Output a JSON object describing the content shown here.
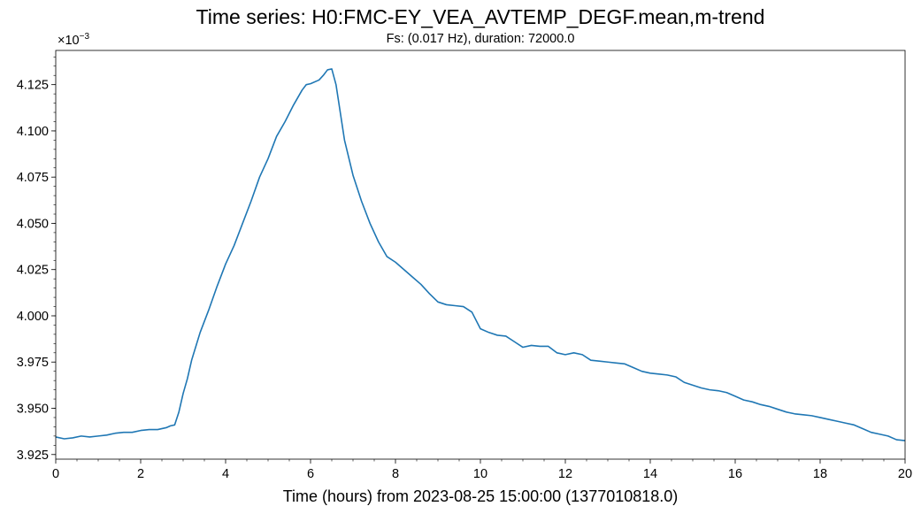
{
  "chart_data": {
    "type": "line",
    "title": "Time series: H0:FMC-EY_VEA_AVTEMP_DEGF.mean,m-trend",
    "subtitle": "Fs: (0.017 Hz), duration: 72000.0",
    "xlabel": "Time (hours) from 2023-08-25 15:00:00 (1377010818.0)",
    "ylabel": "",
    "y_multiplier_base": "×10",
    "y_multiplier_exp": "−3",
    "xlim": [
      0,
      20
    ],
    "ylim": [
      3.9225,
      4.1435
    ],
    "x_ticks": [
      0,
      2,
      4,
      6,
      8,
      10,
      12,
      14,
      16,
      18,
      20
    ],
    "x_tick_labels": [
      "0",
      "2",
      "4",
      "6",
      "8",
      "10",
      "12",
      "14",
      "16",
      "18",
      "20"
    ],
    "y_ticks": [
      3.925,
      3.95,
      3.975,
      4.0,
      4.025,
      4.05,
      4.075,
      4.1,
      4.125
    ],
    "y_tick_labels": [
      "3.925",
      "3.950",
      "3.975",
      "4.000",
      "4.025",
      "4.050",
      "4.075",
      "4.100",
      "4.125"
    ],
    "grid": false,
    "line_color": "#1f77b4",
    "series": [
      {
        "x": [
          0,
          0.2,
          0.4,
          0.6,
          0.8,
          1.0,
          1.2,
          1.4,
          1.6,
          1.8,
          2.0,
          2.2,
          2.4,
          2.6,
          2.7,
          2.8,
          2.9,
          3.0,
          3.1,
          3.2,
          3.4,
          3.6,
          3.8,
          4.0,
          4.2,
          4.4,
          4.6,
          4.8,
          5.0,
          5.2,
          5.4,
          5.6,
          5.8,
          5.9,
          6.0,
          6.2,
          6.3,
          6.4,
          6.5,
          6.6,
          6.7,
          6.8,
          7.0,
          7.2,
          7.4,
          7.6,
          7.8,
          8.0,
          8.2,
          8.4,
          8.6,
          8.8,
          9.0,
          9.2,
          9.4,
          9.6,
          9.8,
          10.0,
          10.2,
          10.4,
          10.6,
          10.8,
          11.0,
          11.2,
          11.4,
          11.6,
          11.8,
          12.0,
          12.2,
          12.4,
          12.6,
          12.8,
          13.0,
          13.2,
          13.4,
          13.6,
          13.8,
          14.0,
          14.2,
          14.4,
          14.6,
          14.8,
          15.0,
          15.2,
          15.4,
          15.6,
          15.8,
          16.0,
          16.2,
          16.4,
          16.6,
          16.8,
          17.0,
          17.2,
          17.4,
          17.6,
          17.8,
          18.0,
          18.2,
          18.4,
          18.6,
          18.8,
          19.0,
          19.2,
          19.4,
          19.6,
          19.8,
          20.0
        ],
        "y": [
          3.9345,
          3.9335,
          3.934,
          3.935,
          3.9345,
          3.935,
          3.9355,
          3.9365,
          3.937,
          3.937,
          3.938,
          3.9385,
          3.9385,
          3.9395,
          3.9405,
          3.941,
          3.948,
          3.958,
          3.966,
          3.976,
          3.991,
          4.003,
          4.016,
          4.028,
          4.038,
          4.05,
          4.062,
          4.075,
          4.085,
          4.097,
          4.105,
          4.114,
          4.122,
          4.125,
          4.1255,
          4.1275,
          4.13,
          4.133,
          4.1335,
          4.125,
          4.11,
          4.095,
          4.076,
          4.062,
          4.05,
          4.04,
          4.032,
          4.029,
          4.025,
          4.021,
          4.017,
          4.012,
          4.0075,
          4.006,
          4.0055,
          4.005,
          4.002,
          3.993,
          3.991,
          3.9895,
          3.989,
          3.986,
          3.983,
          3.984,
          3.9835,
          3.9835,
          3.98,
          3.979,
          3.98,
          3.979,
          3.976,
          3.9755,
          3.975,
          3.9745,
          3.974,
          3.972,
          3.97,
          3.969,
          3.9685,
          3.968,
          3.967,
          3.964,
          3.9625,
          3.961,
          3.96,
          3.9595,
          3.9585,
          3.9565,
          3.9545,
          3.9535,
          3.952,
          3.951,
          3.9495,
          3.948,
          3.947,
          3.9465,
          3.946,
          3.945,
          3.944,
          3.943,
          3.942,
          3.941,
          3.939,
          3.937,
          3.936,
          3.935,
          3.933,
          3.9325
        ]
      }
    ]
  }
}
